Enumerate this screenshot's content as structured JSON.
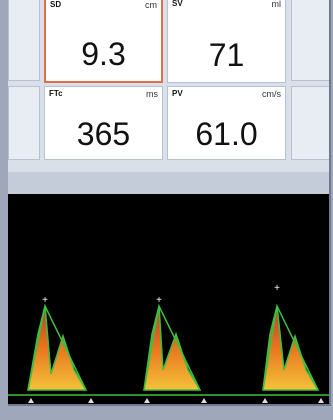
{
  "tiles": [
    {
      "label": "SD",
      "unit": "cm",
      "value": "9.3"
    },
    {
      "label": "SV",
      "unit": "ml",
      "value": "71"
    },
    {
      "label": "FTc",
      "unit": "ms",
      "value": "365"
    },
    {
      "label": "PV",
      "unit": "cm/s",
      "value": "61.0"
    }
  ]
}
